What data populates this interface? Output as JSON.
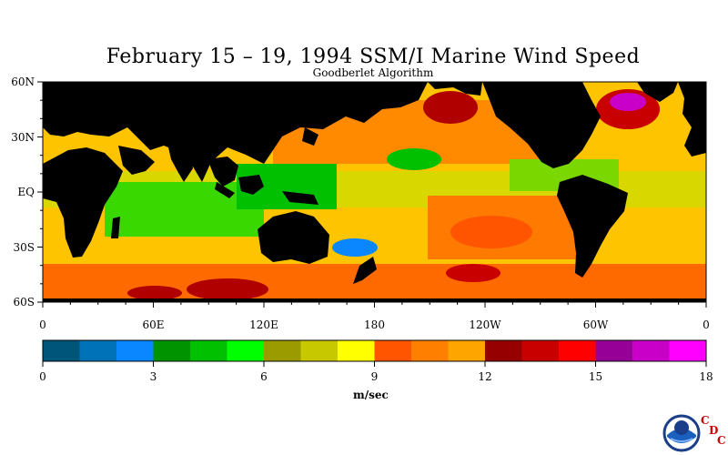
{
  "title": "February 15 – 19, 1994 SSM/I Marine Wind Speed",
  "subtitle": "Goodberlet Algorithm",
  "lat_labels": [
    "60N",
    "30N",
    "EQ",
    "30S",
    "60S"
  ],
  "lon_labels": [
    "0",
    "60E",
    "120E",
    "180",
    "120W",
    "60W",
    "0"
  ],
  "colorbar": {
    "colors": [
      "#00557a",
      "#0072b8",
      "#0a86ff",
      "#009300",
      "#00c000",
      "#00ff00",
      "#9b9b00",
      "#c8c800",
      "#ffff00",
      "#ff5500",
      "#ff7f00",
      "#ffa500",
      "#960000",
      "#c80000",
      "#ff0000",
      "#960096",
      "#c800c8",
      "#ff00ff"
    ],
    "tick_labels": [
      "0",
      "3",
      "6",
      "9",
      "12",
      "15",
      "18"
    ],
    "units": "m/sec"
  },
  "logo": {
    "name": "NOAA",
    "cdc_letters": [
      "C",
      "D",
      "C"
    ]
  },
  "chart_data": {
    "type": "heatmap",
    "title": "February 15 – 19, 1994 SSM/I Marine Wind Speed",
    "subtitle": "Goodberlet Algorithm",
    "x_ticks": [
      "0",
      "60E",
      "120E",
      "180",
      "120W",
      "60W",
      "0"
    ],
    "y_ticks": [
      "60N",
      "30N",
      "EQ",
      "30S",
      "60S"
    ],
    "colorbar_range": [
      0,
      18
    ],
    "colorbar_ticks": [
      0,
      3,
      6,
      9,
      12,
      15,
      18
    ],
    "units": "m/sec",
    "regions": [
      {
        "lon": [
          180,
          200
        ],
        "lat": [
          45,
          58
        ],
        "value": 13.5
      },
      {
        "lon": [
          310,
          335
        ],
        "lat": [
          48,
          60
        ],
        "value": 16.5
      },
      {
        "lon": [
          160,
          230
        ],
        "lat": [
          20,
          40
        ],
        "value": 10.5
      },
      {
        "lon": [
          175,
          215
        ],
        "lat": [
          -35,
          -10
        ],
        "value": 10.5
      },
      {
        "lon": [
          60,
          130
        ],
        "lat": [
          -55,
          -40
        ],
        "value": 13
      },
      {
        "lon": [
          130,
          300
        ],
        "lat": [
          -60,
          -40
        ],
        "value": 11
      },
      {
        "lon": [
          0,
          360
        ],
        "lat": [
          -10,
          10
        ],
        "value": 7
      },
      {
        "lon": [
          50,
          140
        ],
        "lat": [
          -10,
          15
        ],
        "value": 4.5
      },
      {
        "lon": [
          260,
          300
        ],
        "lat": [
          -8,
          5
        ],
        "value": 5
      }
    ]
  }
}
